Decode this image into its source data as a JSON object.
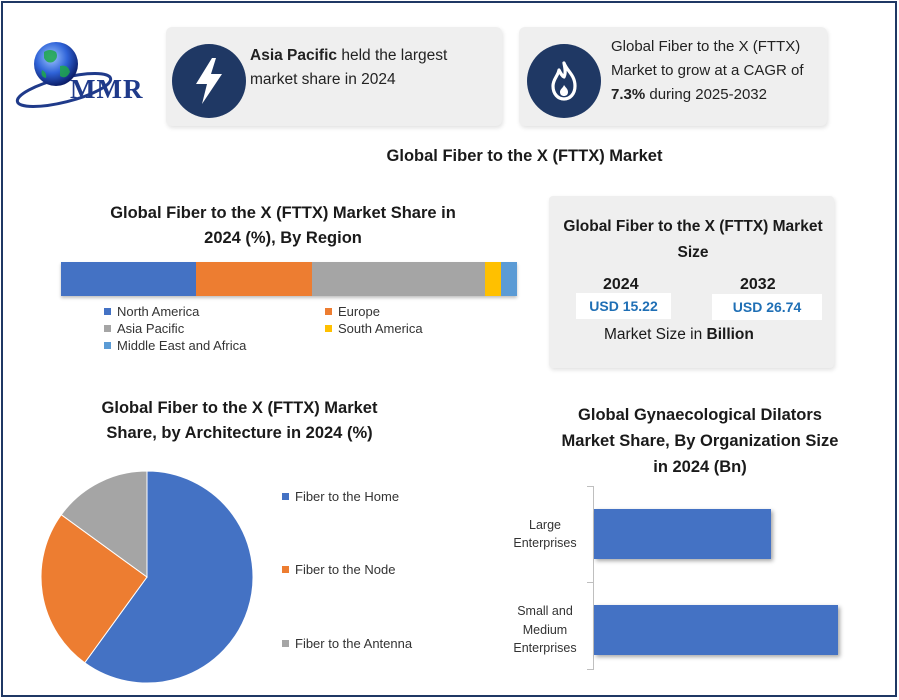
{
  "logo": {
    "text": "MMR"
  },
  "highlights": [
    {
      "icon": "lightning-icon",
      "bold": "Asia Pacific",
      "text": " held the largest market share in 2024"
    },
    {
      "icon": "flame-icon",
      "text_a": "Global Fiber to the X (FTTX) Market to grow at a CAGR of ",
      "bold": "7.3%",
      "text_b": " during 2025-2032"
    }
  ],
  "main_title": "Global Fiber to the X (FTTX) Market",
  "colors": {
    "blue": "#4472c4",
    "orange": "#ed7d31",
    "gray": "#a5a5a5",
    "yellow": "#ffc000",
    "lightblue": "#5b9bd5",
    "navy": "#1f3864"
  },
  "market_size": {
    "title": "Global Fiber to the X (FTTX) Market Size",
    "years": [
      "2024",
      "2032"
    ],
    "values": [
      "USD 15.22",
      "USD 26.74"
    ],
    "footer_text": "Market Size in ",
    "footer_bold": "Billion"
  },
  "chart_data": [
    {
      "type": "bar",
      "orientation": "stacked-horizontal",
      "title": "Global Fiber to the X (FTTX) Market Share in 2024 (%), By Region",
      "series": [
        {
          "name": "North America",
          "value": 29.5,
          "color": "#4472c4"
        },
        {
          "name": "Europe",
          "value": 25.5,
          "color": "#ed7d31"
        },
        {
          "name": "Asia Pacific",
          "value": 38.0,
          "color": "#a5a5a5"
        },
        {
          "name": "South America",
          "value": 3.5,
          "color": "#ffc000"
        },
        {
          "name": "Middle East and Africa",
          "value": 3.5,
          "color": "#5b9bd5"
        }
      ],
      "legend_position": "bottom"
    },
    {
      "type": "pie",
      "title": "Global Fiber to the X (FTTX) Market Share, by Architecture in 2024 (%)",
      "slices": [
        {
          "name": "Fiber to the Home",
          "value": 60,
          "color": "#4472c4"
        },
        {
          "name": "Fiber to the Node",
          "value": 25,
          "color": "#ed7d31"
        },
        {
          "name": "Fiber to the Antenna",
          "value": 15,
          "color": "#a5a5a5"
        }
      ],
      "legend_position": "right"
    },
    {
      "type": "bar",
      "orientation": "horizontal",
      "title": "Global Gynaecological Dilators Market Share, By Organization Size in 2024 (Bn)",
      "categories": [
        "Large Enterprises",
        "Small and Medium Enterprises"
      ],
      "category_lines": [
        [
          "Large",
          "Enterprises"
        ],
        [
          "Small and",
          "Medium",
          "Enterprises"
        ]
      ],
      "values": [
        1.6,
        2.2
      ],
      "xlim": [
        0,
        2.3
      ],
      "color": "#4472c4"
    }
  ]
}
